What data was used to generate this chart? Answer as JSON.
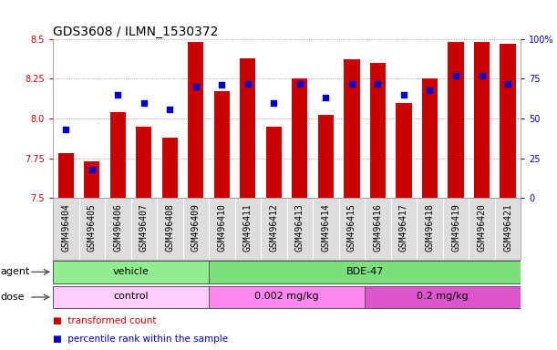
{
  "title": "GDS3608 / ILMN_1530372",
  "samples": [
    "GSM496404",
    "GSM496405",
    "GSM496406",
    "GSM496407",
    "GSM496408",
    "GSM496409",
    "GSM496410",
    "GSM496411",
    "GSM496412",
    "GSM496413",
    "GSM496414",
    "GSM496415",
    "GSM496416",
    "GSM496417",
    "GSM496418",
    "GSM496419",
    "GSM496420",
    "GSM496421"
  ],
  "transformed_count": [
    7.78,
    7.73,
    8.04,
    7.95,
    7.88,
    8.48,
    8.17,
    8.38,
    7.95,
    8.25,
    8.02,
    8.37,
    8.35,
    8.1,
    8.25,
    8.48,
    8.48,
    8.47
  ],
  "percentile_rank": [
    43,
    18,
    65,
    60,
    56,
    70,
    71,
    72,
    60,
    72,
    63,
    72,
    72,
    65,
    68,
    77,
    77,
    72
  ],
  "ylim_left": [
    7.5,
    8.5
  ],
  "ylim_right": [
    0,
    100
  ],
  "yticks_left": [
    7.5,
    7.75,
    8.0,
    8.25,
    8.5
  ],
  "yticks_right": [
    0,
    25,
    50,
    75,
    100
  ],
  "bar_color": "#cc0000",
  "bar_base": 7.5,
  "dot_color": "#0000cc",
  "agent_groups": [
    {
      "label": "vehicle",
      "start": 0,
      "end": 6,
      "color": "#90ee90"
    },
    {
      "label": "BDE-47",
      "start": 6,
      "end": 18,
      "color": "#7be07b"
    }
  ],
  "dose_groups": [
    {
      "label": "control",
      "start": 0,
      "end": 6,
      "color": "#ffccff"
    },
    {
      "label": "0.002 mg/kg",
      "start": 6,
      "end": 12,
      "color": "#ff88ee"
    },
    {
      "label": "0.2 mg/kg",
      "start": 12,
      "end": 18,
      "color": "#dd55cc"
    }
  ],
  "tick_label_bg": "#dddddd",
  "grid_color": "#888888",
  "background_color": "#ffffff",
  "title_fontsize": 10,
  "tick_fontsize": 7,
  "axis_color_left": "#cc0000",
  "axis_color_right": "#0000cc"
}
